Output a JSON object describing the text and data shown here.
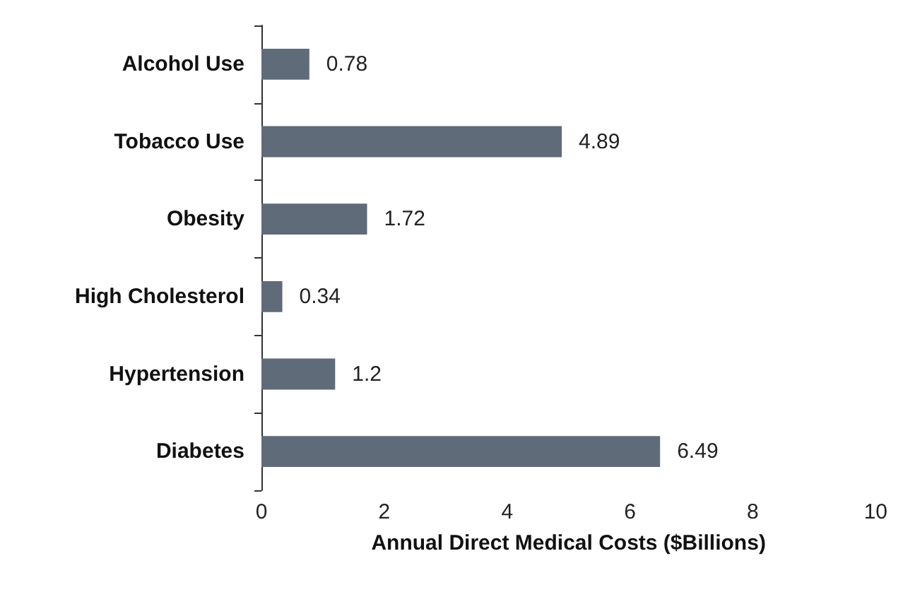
{
  "chart_data": {
    "type": "bar",
    "orientation": "horizontal",
    "xlabel": "Annual Direct Medical Costs ($Billions)",
    "categories": [
      "Alcohol Use",
      "Tobacco Use",
      "Obesity",
      "High Cholesterol",
      "Hypertension",
      "Diabetes"
    ],
    "values": [
      0.78,
      4.89,
      1.72,
      0.34,
      1.2,
      6.49
    ],
    "color": "#5f6b78",
    "xlim": [
      0,
      10
    ],
    "xticks": [
      0,
      2,
      4,
      6,
      8,
      10
    ],
    "grid": false,
    "data_labels": true
  }
}
